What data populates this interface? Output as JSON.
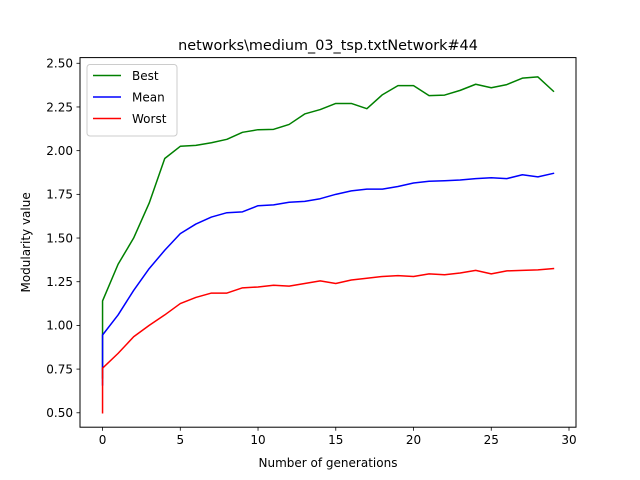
{
  "chart_data": {
    "type": "line",
    "title": "networks\\medium_03_tsp.txtNetwork#44",
    "xlabel": "Number of generations",
    "ylabel": "Modularity value",
    "xlim": [
      -1.45,
      30.45
    ],
    "ylim": [
      0.4175,
      2.5325
    ],
    "xticks": [
      0,
      5,
      10,
      15,
      20,
      25,
      30
    ],
    "yticks": [
      0.5,
      0.75,
      1.0,
      1.25,
      1.5,
      1.75,
      2.0,
      2.25,
      2.5
    ],
    "ytick_labels": [
      "0.50",
      "0.75",
      "1.00",
      "1.25",
      "1.50",
      "1.75",
      "2.00",
      "2.25",
      "2.50"
    ],
    "grid": false,
    "legend_position": "top-left",
    "series": [
      {
        "name": "Best",
        "color": "#008000",
        "x": [
          0,
          0,
          1,
          2,
          3,
          4,
          5,
          6,
          7,
          8,
          9,
          10,
          11,
          12,
          13,
          14,
          15,
          16,
          17,
          18,
          19,
          20,
          21,
          22,
          23,
          24,
          25,
          26,
          27,
          28,
          29
        ],
        "y": [
          0.7,
          1.14,
          1.35,
          1.5,
          1.7,
          1.955,
          2.025,
          2.03,
          2.045,
          2.065,
          2.105,
          2.12,
          2.122,
          2.15,
          2.21,
          2.235,
          2.27,
          2.27,
          2.24,
          2.32,
          2.372,
          2.372,
          2.315,
          2.318,
          2.345,
          2.38,
          2.36,
          2.378,
          2.415,
          2.422,
          2.34
        ]
      },
      {
        "name": "Mean",
        "color": "#0000ff",
        "x": [
          0,
          0,
          1,
          2,
          3,
          4,
          5,
          6,
          7,
          8,
          9,
          10,
          11,
          12,
          13,
          14,
          15,
          16,
          17,
          18,
          19,
          20,
          21,
          22,
          23,
          24,
          25,
          26,
          27,
          28,
          29
        ],
        "y": [
          0.66,
          0.945,
          1.06,
          1.2,
          1.325,
          1.43,
          1.525,
          1.58,
          1.62,
          1.645,
          1.65,
          1.685,
          1.69,
          1.705,
          1.71,
          1.725,
          1.75,
          1.77,
          1.78,
          1.78,
          1.795,
          1.815,
          1.825,
          1.828,
          1.832,
          1.84,
          1.845,
          1.84,
          1.862,
          1.85,
          1.87
        ]
      },
      {
        "name": "Worst",
        "color": "#ff0000",
        "x": [
          0,
          0,
          1,
          2,
          3,
          4,
          5,
          6,
          7,
          8,
          9,
          10,
          11,
          12,
          13,
          14,
          15,
          16,
          17,
          18,
          19,
          20,
          21,
          22,
          23,
          24,
          25,
          26,
          27,
          28,
          29
        ],
        "y": [
          0.5,
          0.755,
          0.84,
          0.935,
          1.0,
          1.06,
          1.125,
          1.16,
          1.185,
          1.185,
          1.215,
          1.22,
          1.23,
          1.225,
          1.24,
          1.255,
          1.24,
          1.26,
          1.27,
          1.28,
          1.285,
          1.28,
          1.295,
          1.29,
          1.3,
          1.315,
          1.295,
          1.312,
          1.315,
          1.318,
          1.325
        ]
      }
    ]
  }
}
